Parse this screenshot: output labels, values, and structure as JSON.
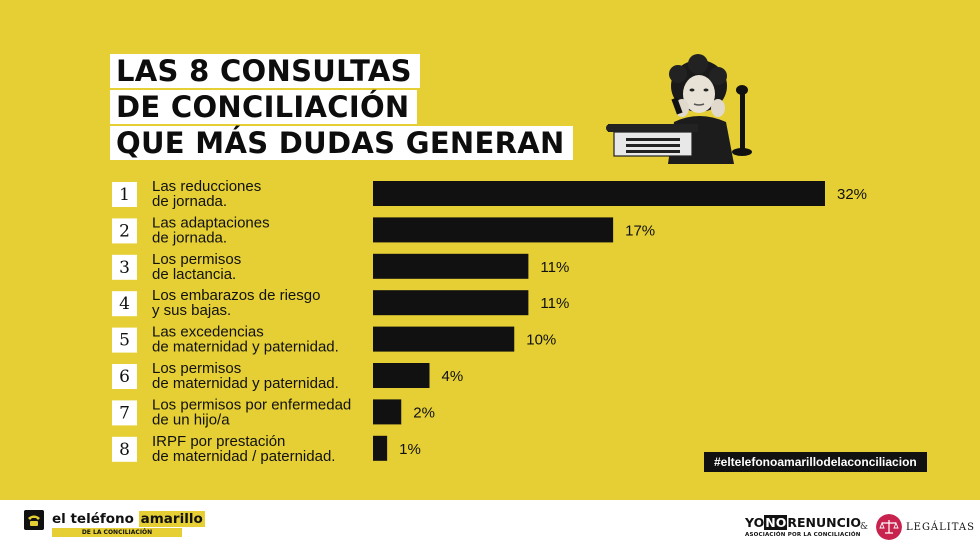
{
  "title": {
    "line1": "LAS 8 CONSULTAS",
    "line2": "DE CONCILIACIÓN",
    "line3": "QUE MÁS DUDAS GENERAN"
  },
  "illustration": {
    "icon": "vintage-woman-telephone-typewriter-icon"
  },
  "chart_data": {
    "type": "bar",
    "orientation": "horizontal",
    "title": "LAS 8 CONSULTAS DE CONCILIACIÓN QUE MÁS DUDAS GENERAN",
    "xlabel": "",
    "ylabel": "",
    "xlim": [
      0,
      32
    ],
    "unit": "%",
    "categories": [
      {
        "rank": "1",
        "line1": "Las reducciones",
        "line2": "de jornada.",
        "value": 32,
        "value_label": "32%"
      },
      {
        "rank": "2",
        "line1": "Las adaptaciones",
        "line2": "de jornada.",
        "value": 17,
        "value_label": "17%"
      },
      {
        "rank": "3",
        "line1": "Los permisos",
        "line2": "de lactancia.",
        "value": 11,
        "value_label": "11%"
      },
      {
        "rank": "4",
        "line1": "Los embarazos de riesgo",
        "line2": "y sus bajas.",
        "value": 11,
        "value_label": "11%"
      },
      {
        "rank": "5",
        "line1": "Las excedencias",
        "line2": "de maternidad y paternidad.",
        "value": 10,
        "value_label": "10%"
      },
      {
        "rank": "6",
        "line1": "Los permisos",
        "line2": "de maternidad y paternidad.",
        "value": 4,
        "value_label": "4%"
      },
      {
        "rank": "7",
        "line1": "Los permisos por enfermedad",
        "line2": "de un hijo/a",
        "value": 2,
        "value_label": "2%"
      },
      {
        "rank": "8",
        "line1": "IRPF por prestación",
        "line2": "de maternidad / paternidad.",
        "value": 1,
        "value_label": "1%"
      }
    ],
    "bar_color": "#111111"
  },
  "hashtag": "#eltelefonoamarillodelaconciliacion",
  "footer": {
    "logo_left_pre": "el teléfono ",
    "logo_left_hl": "amarillo",
    "logo_left_sub": "DE LA CONCILIACIÓN",
    "yno_pre": "YO",
    "yno_box": "NO",
    "yno_post": "RENUNCIO",
    "yno_sub": "ASOCIACIÓN POR LA CONCILIACIÓN",
    "amp": "&",
    "legalitas": "LEGÁLITAS"
  },
  "colors": {
    "background": "#e5cf34",
    "bars": "#111111",
    "legalitas": "#c8234f"
  }
}
